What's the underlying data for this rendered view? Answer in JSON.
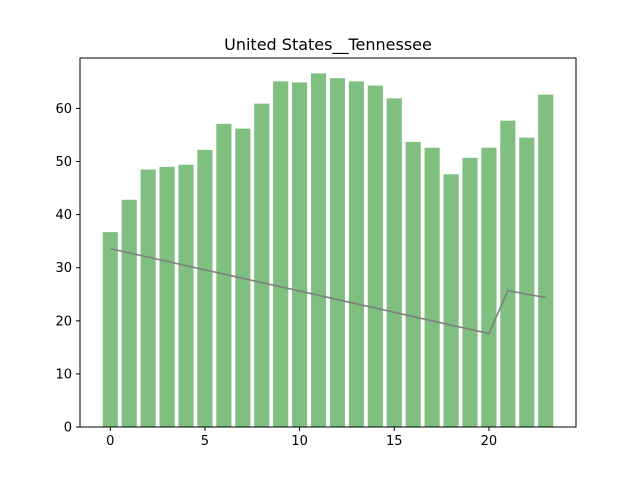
{
  "chart_data": {
    "type": "bar",
    "title": "United States__Tennessee",
    "xlabel": "",
    "ylabel": "",
    "x": [
      0,
      1,
      2,
      3,
      4,
      5,
      6,
      7,
      8,
      9,
      10,
      11,
      12,
      13,
      14,
      15,
      16,
      17,
      18,
      19,
      20,
      21,
      22,
      23
    ],
    "xlim": [
      -1.6,
      24.6
    ],
    "ylim": [
      0,
      69.5
    ],
    "xticks": [
      0,
      5,
      10,
      15,
      20
    ],
    "yticks": [
      0,
      10,
      20,
      30,
      40,
      50,
      60
    ],
    "grid": false,
    "series": [
      {
        "kind": "bar",
        "color": "#7fbf7f",
        "values": [
          36.7,
          42.8,
          48.5,
          49.0,
          49.4,
          52.2,
          57.1,
          56.2,
          60.9,
          65.1,
          64.9,
          66.6,
          65.7,
          65.1,
          64.3,
          61.9,
          53.7,
          52.6,
          47.6,
          50.7,
          52.6,
          57.7,
          54.5,
          62.6
        ]
      },
      {
        "kind": "line",
        "color": "#808080",
        "values": [
          33.6,
          32.8,
          32.0,
          31.2,
          30.4,
          29.6,
          28.8,
          28.0,
          27.2,
          26.4,
          25.6,
          24.8,
          24.0,
          23.2,
          22.4,
          21.6,
          20.8,
          20.0,
          19.2,
          18.4,
          17.6,
          25.7,
          25.0,
          24.4
        ]
      }
    ]
  }
}
